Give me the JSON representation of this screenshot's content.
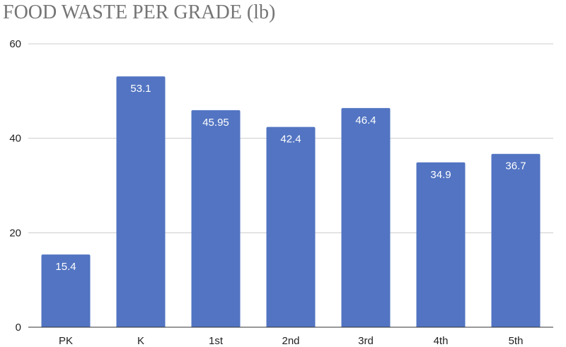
{
  "chart_data": {
    "type": "bar",
    "title": "FOOD WASTE PER GRADE (lb)",
    "xlabel": "",
    "ylabel": "",
    "categories": [
      "PK",
      "K",
      "1st",
      "2nd",
      "3rd",
      "4th",
      "5th"
    ],
    "values": [
      15.4,
      53.1,
      45.95,
      42.4,
      46.4,
      34.9,
      36.7
    ],
    "data_labels": [
      "15.4",
      "53.1",
      "45.95",
      "42.4",
      "46.4",
      "34.9",
      "36.7"
    ],
    "ylim": [
      0,
      60
    ],
    "yticks": [
      0,
      20,
      40,
      60
    ],
    "grid": true,
    "legend": "none",
    "bar_color": "#5274c2",
    "grid_color": "#cccccc",
    "axis_color": "#333333"
  }
}
